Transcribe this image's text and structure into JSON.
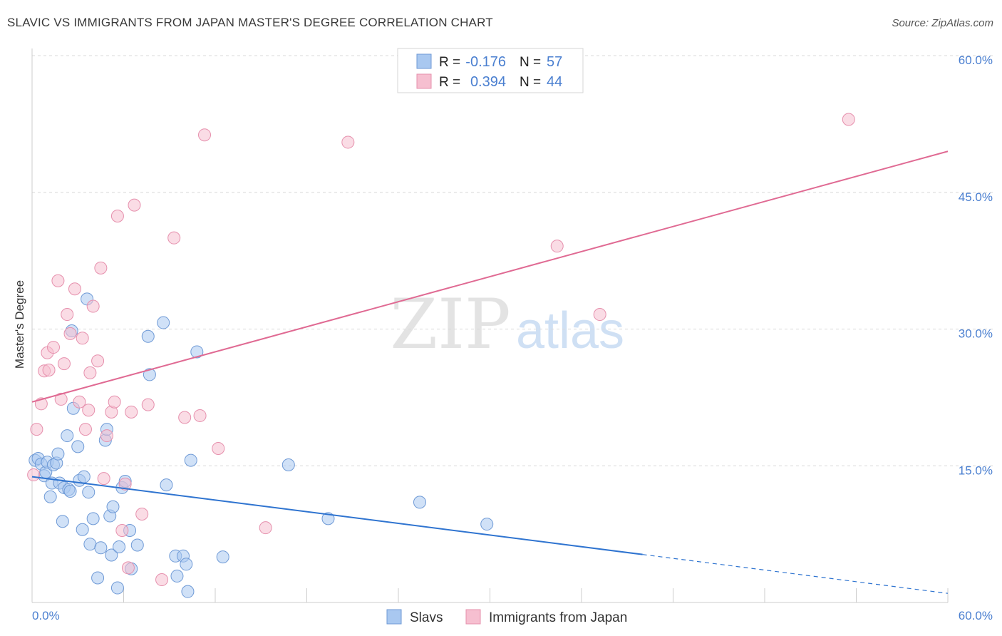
{
  "title": "SLAVIC VS IMMIGRANTS FROM JAPAN MASTER'S DEGREE CORRELATION CHART",
  "source": "Source: ZipAtlas.com",
  "watermark": {
    "zip": "ZIP",
    "atlas": "atlas"
  },
  "colors": {
    "blue_fill": "#a9c8f0",
    "blue_stroke": "#6f9ad6",
    "blue_line": "#2f74d0",
    "pink_fill": "#f6bfd0",
    "pink_stroke": "#e690ad",
    "pink_line": "#e06a93",
    "tick_label": "#4a7fd0",
    "grid": "#d9d9d9"
  },
  "legend_top": [
    {
      "r_label": "R =",
      "r_value": "-0.176",
      "n_label": "N =",
      "n_value": "57",
      "color": "blue"
    },
    {
      "r_label": "R =",
      "r_value": "0.394",
      "n_label": "N =",
      "n_value": "44",
      "color": "pink"
    }
  ],
  "chart_data": {
    "type": "scatter",
    "title": "SLAVIC VS IMMIGRANTS FROM JAPAN MASTER'S DEGREE CORRELATION CHART",
    "xlabel": "",
    "ylabel": "Master's Degree",
    "xlim": [
      0,
      60
    ],
    "ylim": [
      0,
      60
    ],
    "x_tick_labels": [
      "0.0%",
      "60.0%"
    ],
    "y_ticks": [
      15,
      30,
      45,
      60
    ],
    "y_tick_labels": [
      "15.0%",
      "30.0%",
      "45.0%",
      "60.0%"
    ],
    "grid": true,
    "legend": [
      "Slavs",
      "Immigrants from Japan"
    ],
    "series": [
      {
        "name": "Slavs",
        "color": "blue",
        "trend": {
          "x0": 0,
          "y0": 13.8,
          "x1": 60,
          "y1": 1.0,
          "solid_until_x": 40
        },
        "points": [
          [
            0.2,
            15.6
          ],
          [
            0.4,
            15.8
          ],
          [
            0.6,
            15.2
          ],
          [
            0.8,
            13.9
          ],
          [
            0.9,
            14.3
          ],
          [
            1.0,
            15.4
          ],
          [
            1.2,
            11.6
          ],
          [
            1.3,
            13.1
          ],
          [
            1.4,
            15.1
          ],
          [
            1.6,
            15.3
          ],
          [
            1.7,
            16.3
          ],
          [
            1.8,
            13.1
          ],
          [
            2.0,
            8.9
          ],
          [
            2.1,
            12.6
          ],
          [
            2.3,
            18.3
          ],
          [
            2.4,
            12.4
          ],
          [
            2.5,
            12.2
          ],
          [
            2.6,
            29.8
          ],
          [
            2.7,
            21.3
          ],
          [
            3.0,
            17.1
          ],
          [
            3.1,
            13.4
          ],
          [
            3.3,
            8.0
          ],
          [
            3.4,
            13.8
          ],
          [
            3.6,
            33.3
          ],
          [
            3.7,
            12.1
          ],
          [
            3.8,
            6.4
          ],
          [
            4.0,
            9.2
          ],
          [
            4.3,
            2.7
          ],
          [
            4.5,
            6.0
          ],
          [
            4.8,
            17.8
          ],
          [
            4.9,
            19.0
          ],
          [
            5.1,
            9.5
          ],
          [
            5.2,
            5.2
          ],
          [
            5.3,
            10.5
          ],
          [
            5.6,
            1.6
          ],
          [
            5.7,
            6.1
          ],
          [
            5.9,
            12.6
          ],
          [
            6.1,
            13.3
          ],
          [
            6.4,
            7.9
          ],
          [
            6.5,
            3.7
          ],
          [
            6.9,
            6.3
          ],
          [
            7.6,
            29.2
          ],
          [
            7.7,
            25.0
          ],
          [
            8.6,
            30.7
          ],
          [
            8.8,
            12.9
          ],
          [
            9.4,
            5.1
          ],
          [
            9.5,
            2.9
          ],
          [
            9.9,
            5.1
          ],
          [
            10.1,
            4.2
          ],
          [
            10.2,
            1.2
          ],
          [
            10.4,
            15.6
          ],
          [
            10.8,
            27.5
          ],
          [
            12.5,
            5.0
          ],
          [
            16.8,
            15.1
          ],
          [
            19.4,
            9.2
          ],
          [
            25.4,
            11.0
          ],
          [
            29.8,
            8.6
          ]
        ]
      },
      {
        "name": "Immigrants from Japan",
        "color": "pink",
        "trend": {
          "x0": 0,
          "y0": 22.0,
          "x1": 60,
          "y1": 49.5
        },
        "points": [
          [
            0.1,
            14.0
          ],
          [
            0.3,
            19.0
          ],
          [
            0.6,
            21.8
          ],
          [
            0.8,
            25.4
          ],
          [
            1.0,
            27.4
          ],
          [
            1.1,
            25.5
          ],
          [
            1.4,
            28.0
          ],
          [
            1.7,
            35.3
          ],
          [
            1.9,
            22.3
          ],
          [
            2.1,
            26.2
          ],
          [
            2.3,
            31.6
          ],
          [
            2.5,
            29.5
          ],
          [
            2.8,
            34.4
          ],
          [
            3.1,
            22.0
          ],
          [
            3.3,
            29.0
          ],
          [
            3.5,
            19.0
          ],
          [
            3.7,
            21.1
          ],
          [
            3.8,
            25.2
          ],
          [
            4.0,
            32.5
          ],
          [
            4.3,
            26.5
          ],
          [
            4.5,
            36.7
          ],
          [
            4.7,
            13.6
          ],
          [
            4.9,
            18.3
          ],
          [
            5.2,
            20.9
          ],
          [
            5.4,
            22.0
          ],
          [
            5.6,
            42.4
          ],
          [
            5.9,
            7.9
          ],
          [
            6.1,
            13.0
          ],
          [
            6.3,
            3.8
          ],
          [
            6.5,
            20.9
          ],
          [
            6.7,
            43.6
          ],
          [
            7.2,
            9.7
          ],
          [
            7.6,
            21.7
          ],
          [
            8.5,
            2.5
          ],
          [
            9.3,
            40.0
          ],
          [
            10.0,
            20.3
          ],
          [
            11.0,
            20.5
          ],
          [
            11.3,
            51.3
          ],
          [
            12.2,
            16.9
          ],
          [
            15.3,
            8.2
          ],
          [
            20.7,
            50.5
          ],
          [
            34.4,
            39.1
          ],
          [
            37.2,
            31.6
          ],
          [
            53.5,
            53.0
          ]
        ]
      }
    ]
  },
  "legend_bottom": [
    {
      "label": "Slavs",
      "color": "blue"
    },
    {
      "label": "Immigrants from Japan",
      "color": "pink"
    }
  ]
}
